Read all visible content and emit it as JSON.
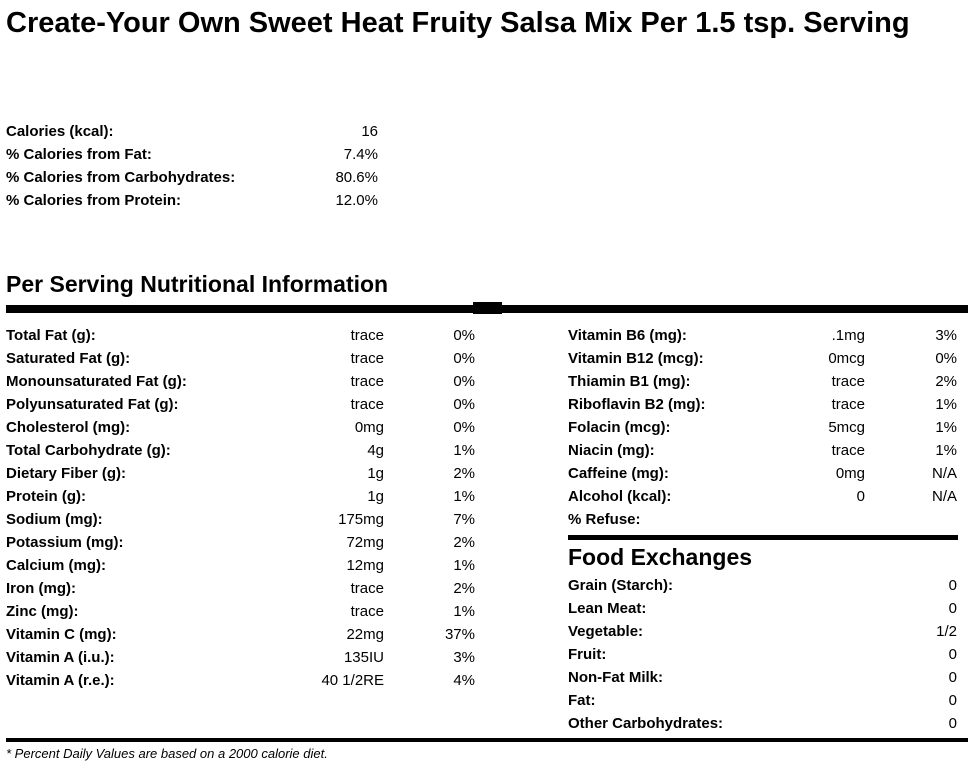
{
  "title": "Create-Your Own Sweet Heat Fruity Salsa Mix Per 1.5 tsp. Serving",
  "summary": [
    {
      "label": "Calories (kcal):",
      "value": "16"
    },
    {
      "label": "% Calories from Fat:",
      "value": "7.4%"
    },
    {
      "label": "% Calories from Carbohydrates:",
      "value": "80.6%"
    },
    {
      "label": "% Calories from Protein:",
      "value": "12.0%"
    }
  ],
  "nutrition_heading": "Per Serving Nutritional Information",
  "left_nutrients": [
    {
      "label": "Total Fat (g):",
      "amount": "trace",
      "dv": "0%"
    },
    {
      "label": "Saturated Fat (g):",
      "amount": "trace",
      "dv": "0%"
    },
    {
      "label": "Monounsaturated Fat (g):",
      "amount": "trace",
      "dv": "0%"
    },
    {
      "label": "Polyunsaturated Fat (g):",
      "amount": "trace",
      "dv": "0%"
    },
    {
      "label": "Cholesterol (mg):",
      "amount": "0mg",
      "dv": "0%"
    },
    {
      "label": "Total Carbohydrate (g):",
      "amount": "4g",
      "dv": "1%"
    },
    {
      "label": "Dietary Fiber (g):",
      "amount": "1g",
      "dv": "2%"
    },
    {
      "label": "Protein (g):",
      "amount": "1g",
      "dv": "1%"
    },
    {
      "label": "Sodium (mg):",
      "amount": "175mg",
      "dv": "7%"
    },
    {
      "label": "Potassium (mg):",
      "amount": "72mg",
      "dv": "2%"
    },
    {
      "label": "Calcium (mg):",
      "amount": "12mg",
      "dv": "1%"
    },
    {
      "label": "Iron (mg):",
      "amount": "trace",
      "dv": "2%"
    },
    {
      "label": "Zinc (mg):",
      "amount": "trace",
      "dv": "1%"
    },
    {
      "label": "Vitamin C (mg):",
      "amount": "22mg",
      "dv": "37%"
    },
    {
      "label": "Vitamin A (i.u.):",
      "amount": "135IU",
      "dv": "3%"
    },
    {
      "label": "Vitamin A (r.e.):",
      "amount": "40 1/2RE",
      "dv": "4%"
    }
  ],
  "right_nutrients": [
    {
      "label": "Vitamin B6 (mg):",
      "amount": ".1mg",
      "dv": "3%"
    },
    {
      "label": "Vitamin B12 (mcg):",
      "amount": "0mcg",
      "dv": "0%"
    },
    {
      "label": "Thiamin B1 (mg):",
      "amount": "trace",
      "dv": "2%"
    },
    {
      "label": "Riboflavin B2 (mg):",
      "amount": "trace",
      "dv": "1%"
    },
    {
      "label": "Folacin (mcg):",
      "amount": "5mcg",
      "dv": "1%"
    },
    {
      "label": "Niacin (mg):",
      "amount": "trace",
      "dv": "1%"
    },
    {
      "label": "Caffeine (mg):",
      "amount": "0mg",
      "dv": "N/A"
    },
    {
      "label": "Alcohol (kcal):",
      "amount": "0",
      "dv": "N/A"
    },
    {
      "label": "% Refuse:",
      "amount": "",
      "dv": ""
    }
  ],
  "food_exchanges_heading": "Food Exchanges",
  "food_exchanges": [
    {
      "label": "Grain (Starch):",
      "value": "0"
    },
    {
      "label": "Lean Meat:",
      "value": "0"
    },
    {
      "label": "Vegetable:",
      "value": "1/2"
    },
    {
      "label": "Fruit:",
      "value": "0"
    },
    {
      "label": "Non-Fat Milk:",
      "value": "0"
    },
    {
      "label": "Fat:",
      "value": "0"
    },
    {
      "label": "Other Carbohydrates:",
      "value": "0"
    }
  ],
  "footnote": "* Percent Daily Values are based on a 2000 calorie diet."
}
